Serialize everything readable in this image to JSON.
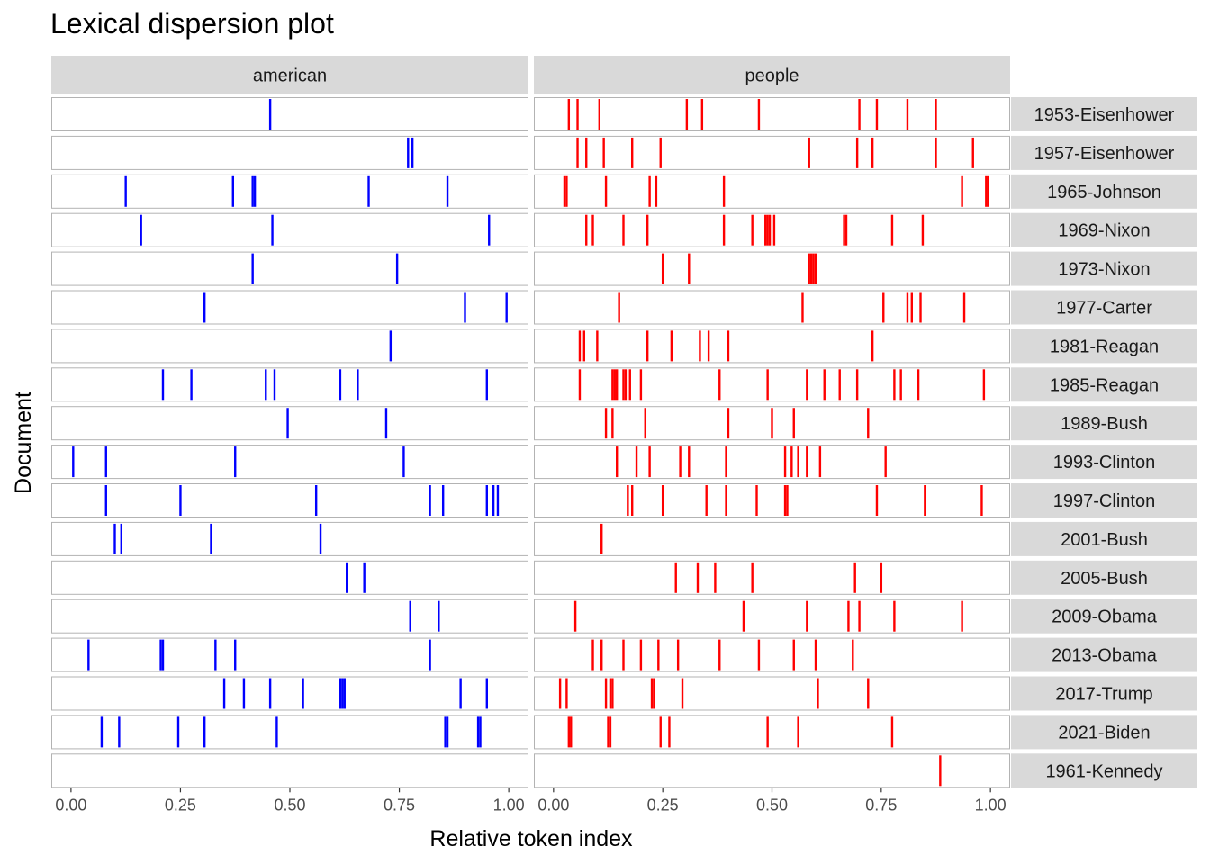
{
  "chart_data": {
    "type": "lexical-dispersion",
    "title": "Lexical dispersion plot",
    "xlabel": "Relative token index",
    "ylabel": "Document",
    "xlim": [
      0,
      1
    ],
    "x_ticks": [
      "0.00",
      "0.25",
      "0.50",
      "0.75",
      "1.00"
    ],
    "facets": [
      {
        "keyword": "american",
        "color": "#0000FF"
      },
      {
        "keyword": "people",
        "color": "#FF0000"
      }
    ],
    "documents": [
      {
        "name": "1953-Eisenhower",
        "american": [
          0.455
        ],
        "people": [
          0.035,
          0.055,
          0.105,
          0.305,
          0.34,
          0.47,
          0.7,
          0.74,
          0.81,
          0.875
        ]
      },
      {
        "name": "1957-Eisenhower",
        "american": [
          0.77,
          0.78
        ],
        "people": [
          0.055,
          0.075,
          0.115,
          0.18,
          0.245,
          0.585,
          0.695,
          0.73,
          0.875,
          0.96
        ]
      },
      {
        "name": "1965-Johnson",
        "american": [
          0.125,
          0.37,
          0.415,
          0.42,
          0.68,
          0.86
        ],
        "people": [
          0.025,
          0.03,
          0.12,
          0.22,
          0.235,
          0.39,
          0.935,
          0.99,
          0.995
        ]
      },
      {
        "name": "1969-Nixon",
        "american": [
          0.16,
          0.46,
          0.955
        ],
        "people": [
          0.075,
          0.09,
          0.16,
          0.215,
          0.39,
          0.455,
          0.485,
          0.49,
          0.495,
          0.505,
          0.665,
          0.67,
          0.775,
          0.845
        ]
      },
      {
        "name": "1973-Nixon",
        "american": [
          0.415,
          0.745
        ],
        "people": [
          0.25,
          0.31,
          0.585,
          0.59,
          0.595,
          0.6
        ]
      },
      {
        "name": "1977-Carter",
        "american": [
          0.305,
          0.9,
          0.995
        ],
        "people": [
          0.15,
          0.57,
          0.755,
          0.81,
          0.82,
          0.84,
          0.94
        ]
      },
      {
        "name": "1981-Reagan",
        "american": [
          0.73
        ],
        "people": [
          0.06,
          0.07,
          0.1,
          0.215,
          0.27,
          0.335,
          0.355,
          0.4,
          0.73
        ]
      },
      {
        "name": "1985-Reagan",
        "american": [
          0.21,
          0.275,
          0.445,
          0.465,
          0.615,
          0.655,
          0.95
        ],
        "people": [
          0.06,
          0.135,
          0.14,
          0.145,
          0.16,
          0.165,
          0.175,
          0.2,
          0.38,
          0.49,
          0.58,
          0.62,
          0.655,
          0.695,
          0.78,
          0.795,
          0.835,
          0.985
        ]
      },
      {
        "name": "1989-Bush",
        "american": [
          0.495,
          0.72
        ],
        "people": [
          0.12,
          0.135,
          0.21,
          0.4,
          0.5,
          0.55,
          0.72
        ]
      },
      {
        "name": "1993-Clinton",
        "american": [
          0.005,
          0.08,
          0.375,
          0.76
        ],
        "people": [
          0.145,
          0.19,
          0.22,
          0.29,
          0.31,
          0.395,
          0.53,
          0.545,
          0.56,
          0.58,
          0.61,
          0.76
        ]
      },
      {
        "name": "1997-Clinton",
        "american": [
          0.08,
          0.25,
          0.56,
          0.82,
          0.85,
          0.95,
          0.965,
          0.975
        ],
        "people": [
          0.17,
          0.18,
          0.25,
          0.35,
          0.395,
          0.465,
          0.53,
          0.535,
          0.74,
          0.85,
          0.98
        ]
      },
      {
        "name": "2001-Bush",
        "american": [
          0.1,
          0.115,
          0.32,
          0.57
        ],
        "people": [
          0.11
        ]
      },
      {
        "name": "2005-Bush",
        "american": [
          0.63,
          0.67
        ],
        "people": [
          0.28,
          0.33,
          0.37,
          0.455,
          0.69,
          0.75
        ]
      },
      {
        "name": "2009-Obama",
        "american": [
          0.775,
          0.84
        ],
        "people": [
          0.05,
          0.435,
          0.58,
          0.675,
          0.7,
          0.78,
          0.935
        ]
      },
      {
        "name": "2013-Obama",
        "american": [
          0.04,
          0.205,
          0.21,
          0.33,
          0.375,
          0.82
        ],
        "people": [
          0.09,
          0.11,
          0.16,
          0.2,
          0.24,
          0.285,
          0.38,
          0.47,
          0.55,
          0.6,
          0.685
        ]
      },
      {
        "name": "2017-Trump",
        "american": [
          0.35,
          0.395,
          0.455,
          0.53,
          0.615,
          0.62,
          0.625,
          0.89,
          0.95
        ],
        "people": [
          0.015,
          0.03,
          0.12,
          0.13,
          0.135,
          0.225,
          0.23,
          0.295,
          0.605,
          0.72
        ]
      },
      {
        "name": "2021-Biden",
        "american": [
          0.07,
          0.11,
          0.245,
          0.305,
          0.47,
          0.855,
          0.86,
          0.93,
          0.935
        ],
        "people": [
          0.035,
          0.04,
          0.125,
          0.13,
          0.245,
          0.265,
          0.49,
          0.56,
          0.775
        ]
      },
      {
        "name": "1961-Kennedy",
        "american": [],
        "people": [
          0.885
        ]
      }
    ]
  }
}
